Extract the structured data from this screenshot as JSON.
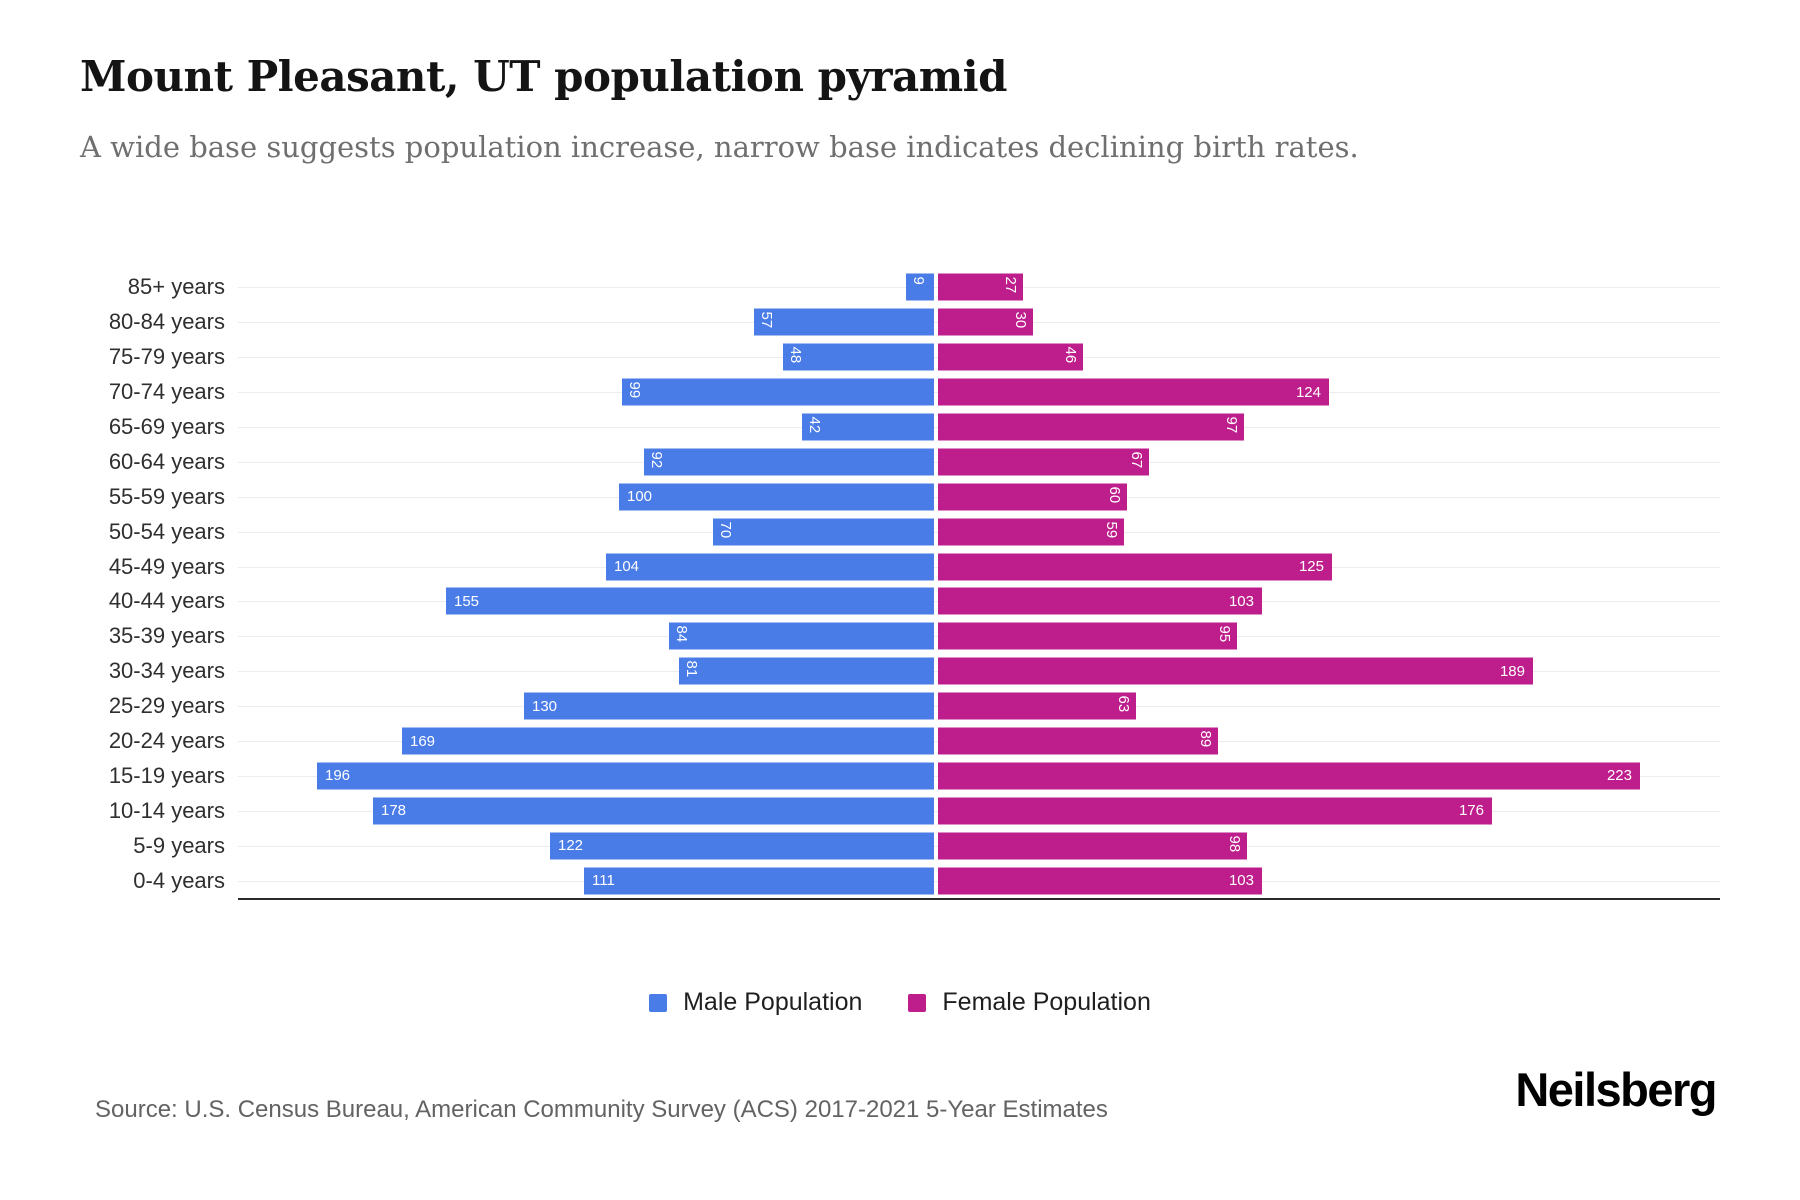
{
  "header": {
    "title": "Mount Pleasant, UT population pyramid",
    "subtitle": "A wide base suggests population increase, narrow base indicates declining birth rates."
  },
  "chart_data": {
    "type": "bar",
    "variant": "population-pyramid",
    "orientation": "horizontal",
    "categories": [
      "85+ years",
      "80-84 years",
      "75-79 years",
      "70-74 years",
      "65-69 years",
      "60-64 years",
      "55-59 years",
      "50-54 years",
      "45-49 years",
      "40-44 years",
      "35-39 years",
      "30-34 years",
      "25-29 years",
      "20-24 years",
      "15-19 years",
      "10-14 years",
      "5-9 years",
      "0-4 years"
    ],
    "series": [
      {
        "name": "Male Population",
        "side": "left",
        "color": "#4a7ce8",
        "values": [
          9,
          57,
          48,
          99,
          42,
          92,
          100,
          70,
          104,
          155,
          84,
          81,
          130,
          169,
          196,
          178,
          122,
          111
        ]
      },
      {
        "name": "Female Population",
        "side": "right",
        "color": "#be1e8c",
        "values": [
          27,
          30,
          46,
          124,
          97,
          67,
          60,
          59,
          125,
          103,
          95,
          189,
          63,
          89,
          223,
          176,
          98,
          103
        ]
      }
    ],
    "value_labels": "on-bars",
    "value_label_color": "#ffffff",
    "grid": true,
    "legend_position": "bottom",
    "axis": {
      "left_max": 220,
      "right_max": 250
    }
  },
  "legend": {
    "items": [
      {
        "label": "Male Population",
        "color": "#4a7ce8"
      },
      {
        "label": "Female Population",
        "color": "#be1e8c"
      }
    ]
  },
  "footer": {
    "source": "Source: U.S. Census Bureau, American Community Survey (ACS) 2017-2021 5-Year Estimates",
    "brand": "Neilsberg"
  }
}
